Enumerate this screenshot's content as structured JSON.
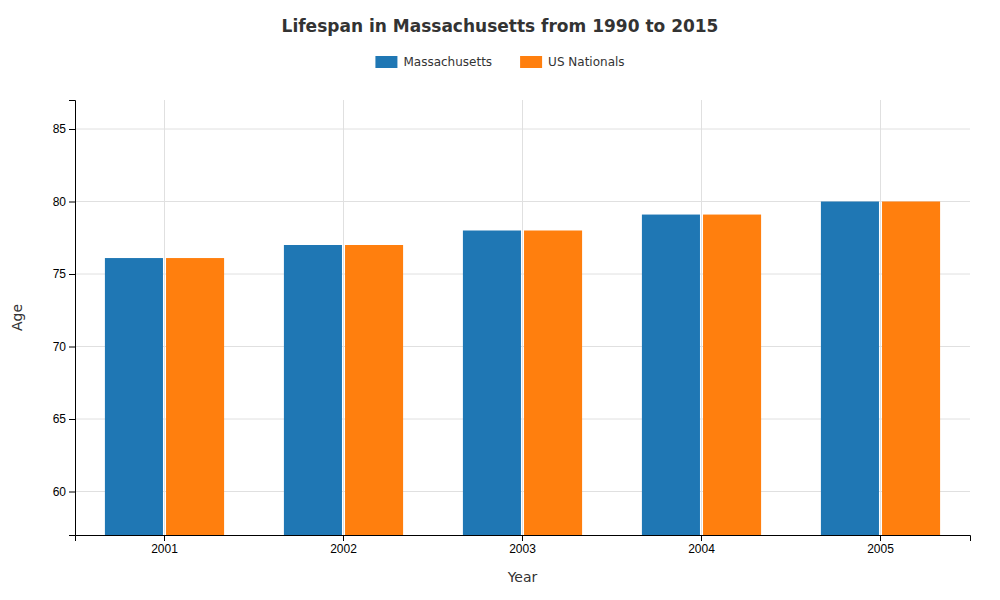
{
  "chart_data": {
    "type": "bar",
    "title": "Lifespan in Massachusetts from 1990 to 2015",
    "xlabel": "Year",
    "ylabel": "Age",
    "categories": [
      "2001",
      "2002",
      "2003",
      "2004",
      "2005"
    ],
    "series": [
      {
        "name": "Massachusetts",
        "values": [
          76.1,
          77.0,
          78.0,
          79.1,
          80.0
        ]
      },
      {
        "name": "US Nationals",
        "values": [
          76.1,
          77.0,
          78.0,
          79.1,
          80.0
        ]
      }
    ],
    "ylim": [
      57,
      87
    ],
    "yticks": [
      60,
      65,
      70,
      75,
      80,
      85
    ],
    "grid": true,
    "legend": "top"
  }
}
